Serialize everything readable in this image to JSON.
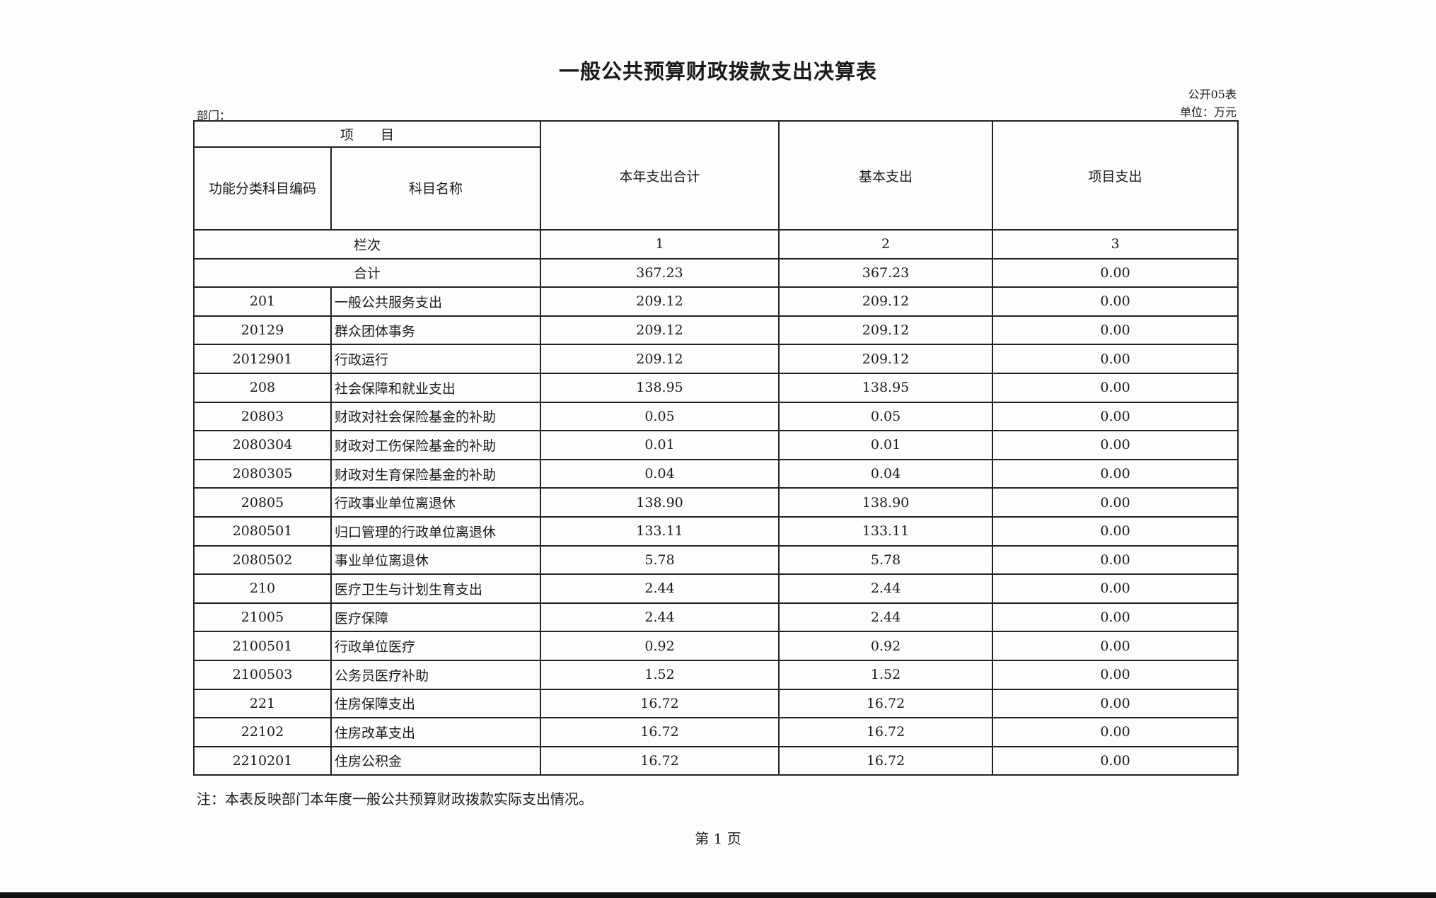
{
  "title": "一般公共预算财政拨款支出决算表",
  "form_no": "公开05表",
  "unit": "单位：万元",
  "department_label": "部门：",
  "header": {
    "item": "项　　目",
    "code": "功能分类科目编码",
    "name": "科目名称",
    "total": "本年支出合计",
    "basic": "基本支出",
    "project": "项目支出",
    "column_index_label": "栏次",
    "col1": "1",
    "col2": "2",
    "col3": "3"
  },
  "sum_row": {
    "label": "合计",
    "total": "367.23",
    "basic": "367.23",
    "project": "0.00"
  },
  "rows": [
    {
      "code": "201",
      "name": "一般公共服务支出",
      "total": "209.12",
      "basic": "209.12",
      "project": "0.00"
    },
    {
      "code": "20129",
      "name": "群众团体事务",
      "total": "209.12",
      "basic": "209.12",
      "project": "0.00"
    },
    {
      "code": "2012901",
      "name": "行政运行",
      "total": "209.12",
      "basic": "209.12",
      "project": "0.00"
    },
    {
      "code": "208",
      "name": "社会保障和就业支出",
      "total": "138.95",
      "basic": "138.95",
      "project": "0.00"
    },
    {
      "code": "20803",
      "name": "财政对社会保险基金的补助",
      "total": "0.05",
      "basic": "0.05",
      "project": "0.00"
    },
    {
      "code": "2080304",
      "name": "财政对工伤保险基金的补助",
      "total": "0.01",
      "basic": "0.01",
      "project": "0.00"
    },
    {
      "code": "2080305",
      "name": "财政对生育保险基金的补助",
      "total": "0.04",
      "basic": "0.04",
      "project": "0.00"
    },
    {
      "code": "20805",
      "name": "行政事业单位离退休",
      "total": "138.90",
      "basic": "138.90",
      "project": "0.00"
    },
    {
      "code": "2080501",
      "name": "归口管理的行政单位离退休",
      "total": "133.11",
      "basic": "133.11",
      "project": "0.00"
    },
    {
      "code": "2080502",
      "name": "事业单位离退休",
      "total": "5.78",
      "basic": "5.78",
      "project": "0.00"
    },
    {
      "code": "210",
      "name": "医疗卫生与计划生育支出",
      "total": "2.44",
      "basic": "2.44",
      "project": "0.00"
    },
    {
      "code": "21005",
      "name": "医疗保障",
      "total": "2.44",
      "basic": "2.44",
      "project": "0.00"
    },
    {
      "code": "2100501",
      "name": "行政单位医疗",
      "total": "0.92",
      "basic": "0.92",
      "project": "0.00"
    },
    {
      "code": "2100503",
      "name": "公务员医疗补助",
      "total": "1.52",
      "basic": "1.52",
      "project": "0.00"
    },
    {
      "code": "221",
      "name": "住房保障支出",
      "total": "16.72",
      "basic": "16.72",
      "project": "0.00"
    },
    {
      "code": "22102",
      "name": "住房改革支出",
      "total": "16.72",
      "basic": "16.72",
      "project": "0.00"
    },
    {
      "code": "2210201",
      "name": "住房公积金",
      "total": "16.72",
      "basic": "16.72",
      "project": "0.00"
    }
  ],
  "note": "注：本表反映部门本年度一般公共预算财政拨款实际支出情况。",
  "page": "第 1 页"
}
